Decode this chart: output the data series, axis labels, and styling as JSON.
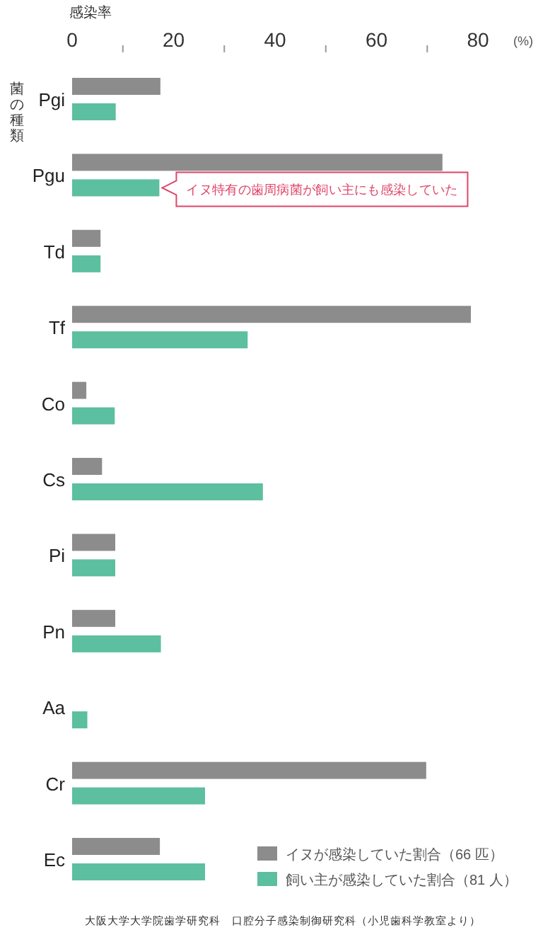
{
  "chart_data": {
    "type": "bar",
    "orientation": "horizontal",
    "xlabel": "感染率",
    "ylabel": "菌の種類",
    "categories": [
      "Pgi",
      "Pgu",
      "Td",
      "Tf",
      "Co",
      "Cs",
      "Pi",
      "Pn",
      "Aa",
      "Cr",
      "Ec"
    ],
    "series": [
      {
        "name": "イヌが感染していた割合（66 匹）",
        "color": "#8c8c8c",
        "values": [
          17.4,
          73,
          5.6,
          78.6,
          2.8,
          5.9,
          8.5,
          8.5,
          0,
          69.8,
          17.3
        ]
      },
      {
        "name": "飼い主が感染していた割合（81 人）",
        "color": "#5cbf9f",
        "values": [
          8.6,
          17.2,
          5.6,
          34.6,
          8.4,
          37.6,
          8.5,
          17.5,
          3,
          26.2,
          26.2
        ]
      }
    ],
    "xlim": [
      0,
      80
    ],
    "xticks": [
      0,
      {
        "value": 10,
        "label": null
      },
      20,
      {
        "value": 30,
        "label": null
      },
      40,
      {
        "value": 50,
        "label": null
      },
      60,
      {
        "value": 70,
        "label": null
      },
      80
    ],
    "legend": "bottom right",
    "annotations": [
      {
        "text": "イヌ特有の歯周病菌が飼い主にも感染していた",
        "x": 17.2,
        "y": "Pgu"
      },
      "(%)",
      "大阪大学大学院歯学研究科　口腔分子感染制御研究科（小児歯科学教室より）"
    ]
  }
}
